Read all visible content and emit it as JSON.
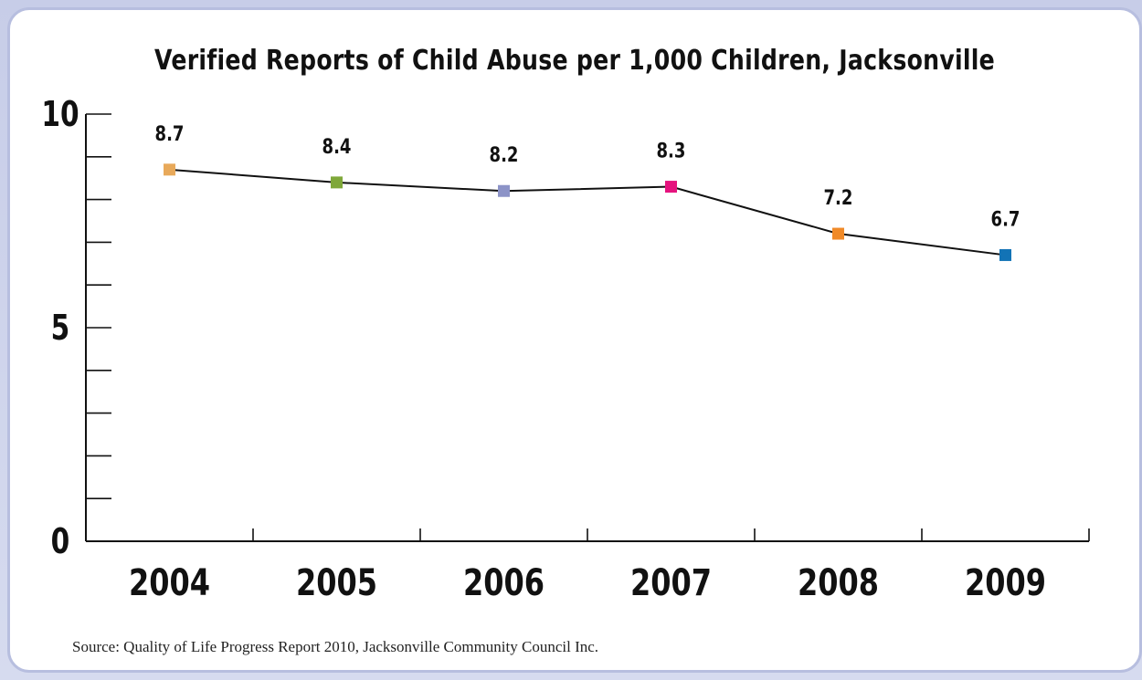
{
  "chart_data": {
    "type": "line",
    "title": "Verified Reports of Child Abuse per 1,000 Children, Jacksonville",
    "xlabel": "",
    "ylabel": "",
    "categories": [
      "2004",
      "2005",
      "2006",
      "2007",
      "2008",
      "2009"
    ],
    "series": [
      {
        "values": [
          8.7,
          8.4,
          8.2,
          8.3,
          7.2,
          6.7
        ],
        "value_labels": [
          "8.7",
          "8.4",
          "8.2",
          "8.3",
          "7.2",
          "6.7"
        ],
        "marker_colors": [
          "#e8a95a",
          "#7fa83a",
          "#8c93c7",
          "#e5137e",
          "#f08a28",
          "#1273b6"
        ]
      }
    ],
    "ylim": [
      0,
      10
    ],
    "y_ticks": [
      "0",
      "5",
      "10"
    ],
    "grid": false,
    "source": "Source: Quality of Life Progress Report 2010, Jacksonville Community Council Inc."
  }
}
